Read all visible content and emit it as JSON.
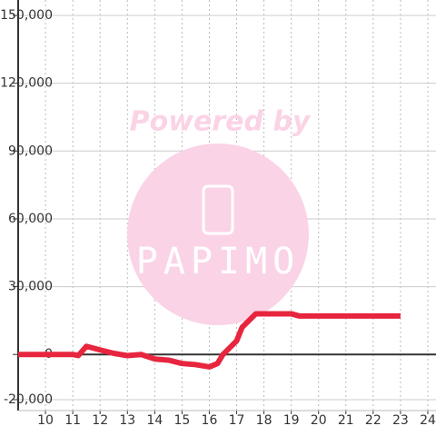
{
  "chart_data": {
    "type": "line",
    "watermark": {
      "line1": "Powered by",
      "line2": "PAPIMO"
    },
    "x": [
      9,
      10,
      11,
      11.2,
      11.5,
      12,
      12.5,
      13,
      13.5,
      14,
      14.5,
      15,
      15.5,
      16,
      16.3,
      16.5,
      17,
      17.2,
      17.7,
      18,
      19,
      19.3,
      20,
      23
    ],
    "series": [
      {
        "color": "#e8253e",
        "values": [
          0,
          0,
          0,
          -500,
          3600,
          2000,
          500,
          -500,
          0,
          -2000,
          -2500,
          -4000,
          -4500,
          -5500,
          -4000,
          0,
          6000,
          12000,
          18000,
          18000,
          18000,
          17000,
          17000,
          17000
        ]
      }
    ],
    "xlim": [
      9,
      24.3
    ],
    "xticks": [
      10,
      11,
      12,
      13,
      14,
      15,
      16,
      17,
      18,
      19,
      20,
      21,
      22,
      23,
      24
    ],
    "ylim": [
      -20000,
      150000
    ],
    "yticks": [
      {
        "value": -20000,
        "label": "-20,000"
      },
      0,
      {
        "value": 30000,
        "label": "30,000"
      },
      {
        "value": 60000,
        "label": "60,000"
      },
      {
        "value": 90000,
        "label": "90,000"
      },
      {
        "value": 120000,
        "label": "120,000"
      },
      {
        "value": 150000,
        "label": "150,000"
      }
    ],
    "grid": true
  }
}
